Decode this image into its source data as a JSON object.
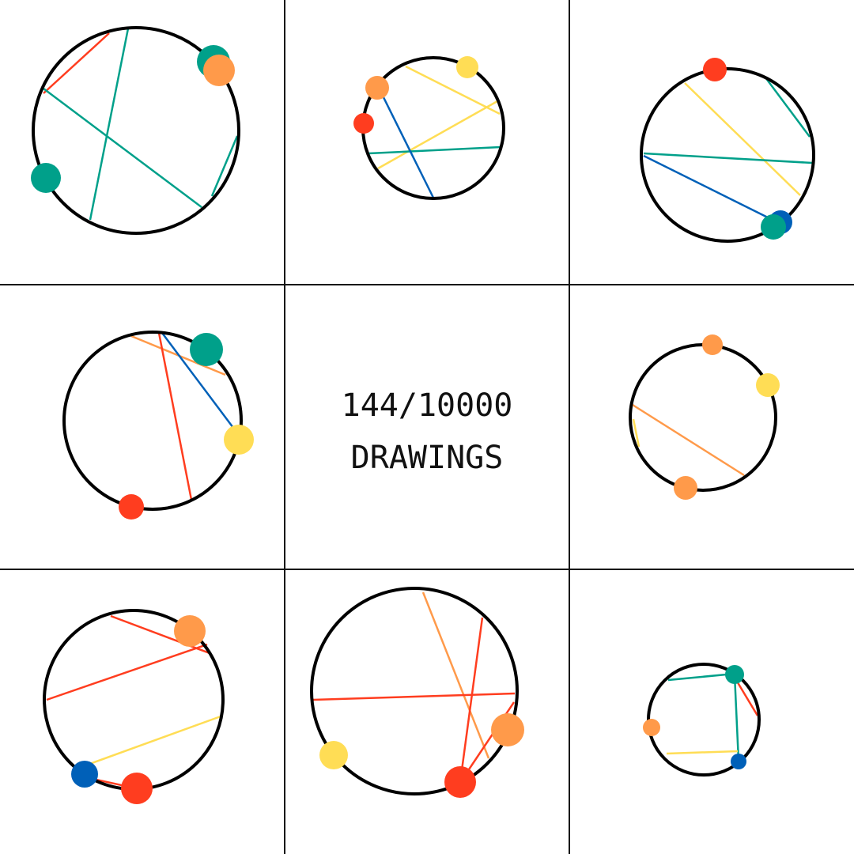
{
  "counter": {
    "count_text": "144/10000",
    "label": "DRAWINGS"
  },
  "colors": {
    "background": "#ffffff",
    "grid_line": "#111111",
    "circle_stroke": "#000000",
    "palette": {
      "red": "#ff3d1f",
      "orange": "#ff9a4a",
      "yellow": "#ffdd55",
      "teal": "#00a08a",
      "blue": "#0060b8"
    }
  },
  "grid": {
    "rows": 3,
    "cols": 3,
    "center_cell": "counter"
  },
  "drawings_shown": 8
}
